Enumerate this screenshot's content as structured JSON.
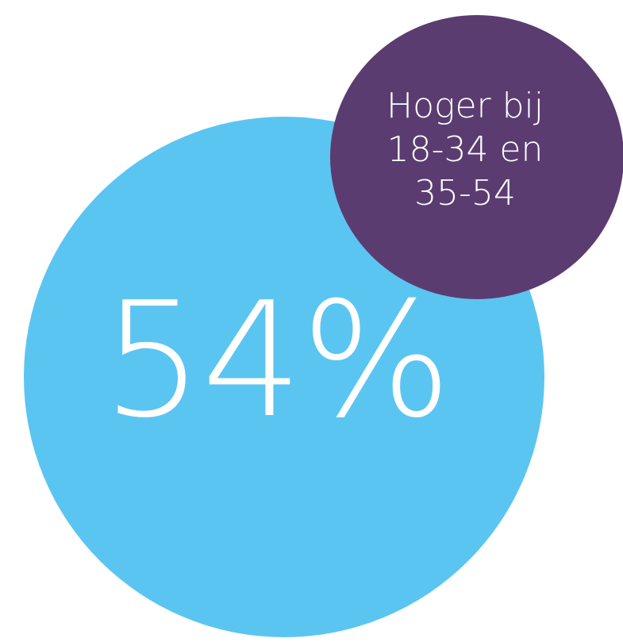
{
  "main_stat": {
    "value": "54%",
    "color": "#5bc5f2"
  },
  "callout": {
    "lines": [
      "Hoger bij",
      "18-34 en",
      "35-54"
    ],
    "color": "#5b3c71"
  }
}
